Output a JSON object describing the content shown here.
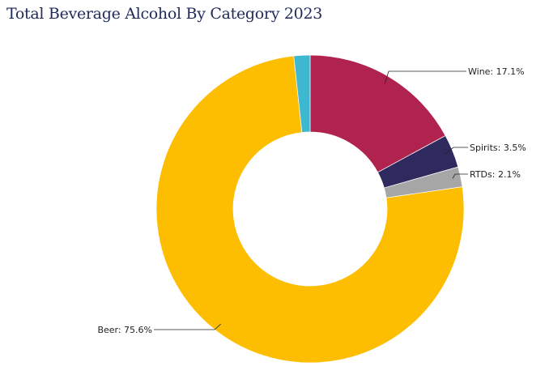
{
  "chart_data": {
    "type": "pie",
    "donut": true,
    "title": "Total Beverage Alcohol By Category 2023",
    "slices": [
      {
        "name": "Wine",
        "value": 17.1,
        "label": "Wine: 17.1%",
        "color": "#b0234f"
      },
      {
        "name": "Spirits",
        "value": 3.5,
        "label": "Spirits: 3.5%",
        "color": "#2e2a5e"
      },
      {
        "name": "RTDs",
        "value": 2.1,
        "label": "RTDs: 2.1%",
        "color": "#a6a6a6"
      },
      {
        "name": "Beer",
        "value": 75.6,
        "label": "Beer: 75.6%",
        "color": "#fdbd00"
      },
      {
        "name": "",
        "value": 1.7,
        "label": "",
        "color": "#3db8d0"
      }
    ]
  }
}
